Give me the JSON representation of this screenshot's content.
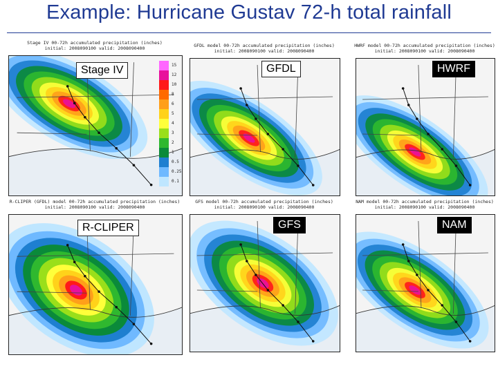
{
  "slide": {
    "title": "Example: Hurricane Gustav 72-h total rainfall"
  },
  "panels": [
    {
      "id": "stage-iv",
      "label": "Stage IV",
      "label_style": "light",
      "header_line1": "Stage IV 00-72h accumulated precipitation (inches)",
      "header_line2": "initial: 2008090100  valid: 2008090400"
    },
    {
      "id": "gfdl",
      "label": "GFDL",
      "label_style": "light",
      "header_line1": "GFDL model 00-72h accumulated precipitation (inches)",
      "header_line2": "initial: 2008090100  valid: 2008090400"
    },
    {
      "id": "hwrf",
      "label": "HWRF",
      "label_style": "dark",
      "header_line1": "HWRF model 00-72h accumulated precipitation (inches)",
      "header_line2": "initial: 2008090100  valid: 2008090400"
    },
    {
      "id": "r-cliper",
      "label": "R-CLIPER",
      "label_style": "light",
      "header_line1": "R-CLIPER (GFDL) model 00-72h accumulated precipitation (inches)",
      "header_line2": "initial: 2008090100  valid: 2008090400"
    },
    {
      "id": "gfs",
      "label": "GFS",
      "label_style": "dark",
      "header_line1": "GFS model 00-72h accumulated precipitation (inches)",
      "header_line2": "initial: 2008090100  valid: 2008090400"
    },
    {
      "id": "nam",
      "label": "NAM",
      "label_style": "dark",
      "header_line1": "NAM model 00-72h accumulated precipitation (inches)",
      "header_line2": "initial: 2008090100  valid: 2008090400"
    }
  ],
  "colorbar": {
    "labels": [
      "15",
      "12",
      "10",
      "8",
      "6",
      "5",
      "4",
      "3",
      "2",
      "1",
      "0.5",
      "0.25",
      "0.1"
    ],
    "colors": [
      "#ff66ff",
      "#e8109c",
      "#ff1a1a",
      "#ff6a00",
      "#ff9f1a",
      "#ffd21a",
      "#ffff3a",
      "#9adf1a",
      "#2fb82f",
      "#0a8a3a",
      "#1e7fd0",
      "#6fb9ff",
      "#bfe6ff"
    ]
  }
}
